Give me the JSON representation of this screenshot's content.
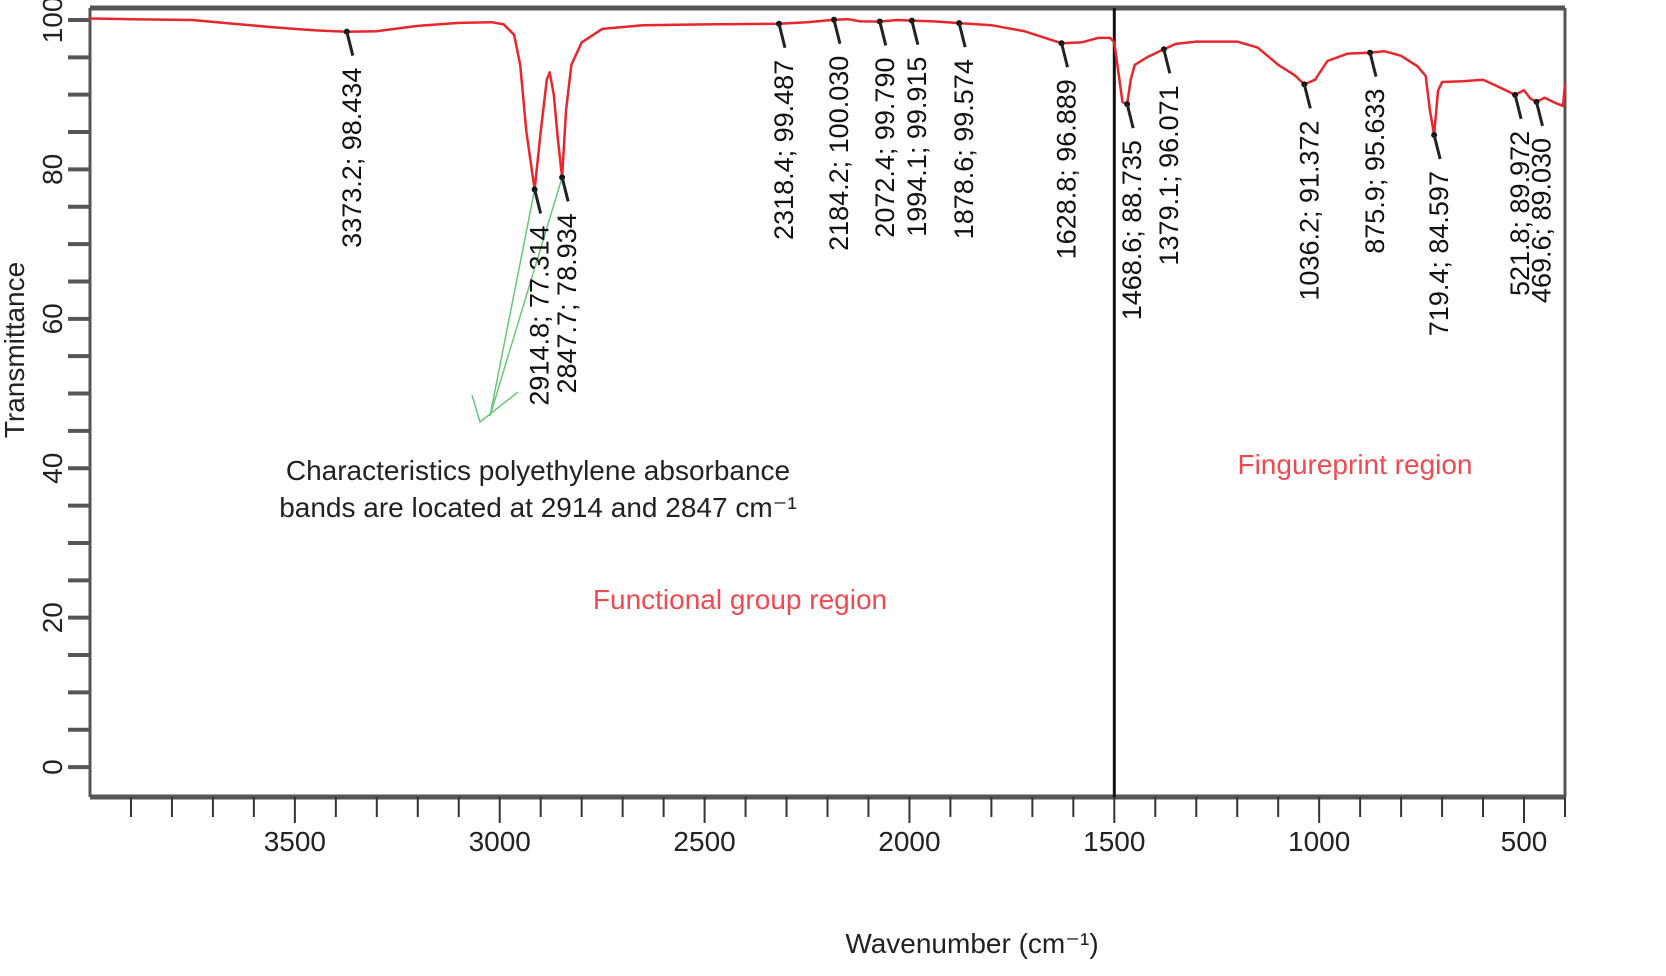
{
  "chart_data": {
    "type": "line",
    "title": "",
    "xlabel": "Wavenumber (cm⁻¹)",
    "ylabel": "Transmittance",
    "xlim": [
      4000,
      400
    ],
    "ylim": [
      -4,
      101.6
    ],
    "x_ticks": [
      3500,
      3000,
      2500,
      2000,
      1500,
      1000,
      500
    ],
    "x_tick_labels": [
      "3500",
      "3000",
      "2500",
      "2000",
      "1500",
      "1000",
      "500"
    ],
    "y_ticks": [
      0,
      20,
      40,
      60,
      80,
      100
    ],
    "y_tick_labels": [
      "0",
      "20",
      "40",
      "60",
      "80",
      "100"
    ],
    "grid": false,
    "series": [
      {
        "name": "spectrum",
        "color": "#e8262b",
        "points": [
          [
            4000,
            100.2
          ],
          [
            3900,
            100.1
          ],
          [
            3750,
            100
          ],
          [
            3650,
            99.5
          ],
          [
            3550,
            99
          ],
          [
            3450,
            98.6
          ],
          [
            3373.2,
            98.434
          ],
          [
            3300,
            98.5
          ],
          [
            3200,
            99.2
          ],
          [
            3100,
            99.6
          ],
          [
            3020,
            99.7
          ],
          [
            2990,
            99.4
          ],
          [
            2965,
            98
          ],
          [
            2950,
            94
          ],
          [
            2935,
            85
          ],
          [
            2914.8,
            77.314
          ],
          [
            2900,
            85
          ],
          [
            2885,
            92
          ],
          [
            2878,
            93
          ],
          [
            2868,
            90
          ],
          [
            2858,
            84
          ],
          [
            2847.7,
            78.934
          ],
          [
            2838,
            88
          ],
          [
            2825,
            94
          ],
          [
            2800,
            97
          ],
          [
            2750,
            98.8
          ],
          [
            2650,
            99.3
          ],
          [
            2500,
            99.4
          ],
          [
            2318.4,
            99.487
          ],
          [
            2250,
            99.7
          ],
          [
            2184.2,
            100.03
          ],
          [
            2150,
            100.1
          ],
          [
            2120,
            99.8
          ],
          [
            2072.4,
            99.79
          ],
          [
            2030,
            100
          ],
          [
            1994.1,
            99.915
          ],
          [
            1940,
            99.8
          ],
          [
            1878.6,
            99.574
          ],
          [
            1800,
            99.3
          ],
          [
            1720,
            98.5
          ],
          [
            1628.8,
            96.889
          ],
          [
            1580,
            97
          ],
          [
            1540,
            97.6
          ],
          [
            1510,
            97.6
          ],
          [
            1500,
            97
          ],
          [
            1490,
            93
          ],
          [
            1480,
            89
          ],
          [
            1468.6,
            88.735
          ],
          [
            1460,
            92
          ],
          [
            1450,
            94
          ],
          [
            1420,
            95
          ],
          [
            1379.1,
            96.071
          ],
          [
            1350,
            96.8
          ],
          [
            1300,
            97.1
          ],
          [
            1200,
            97.1
          ],
          [
            1150,
            96.3
          ],
          [
            1100,
            94
          ],
          [
            1060,
            92.6
          ],
          [
            1036.2,
            91.372
          ],
          [
            1010,
            92
          ],
          [
            980,
            94.5
          ],
          [
            930,
            95.5
          ],
          [
            875.9,
            95.633
          ],
          [
            840,
            95.8
          ],
          [
            800,
            95.2
          ],
          [
            760,
            93.8
          ],
          [
            740,
            92.5
          ],
          [
            730,
            88
          ],
          [
            719.4,
            84.597
          ],
          [
            710,
            90.5
          ],
          [
            700,
            91.7
          ],
          [
            650,
            91.8
          ],
          [
            600,
            92
          ],
          [
            560,
            91
          ],
          [
            521.8,
            89.972
          ],
          [
            500,
            90.6
          ],
          [
            485,
            89.5
          ],
          [
            469.6,
            89.03
          ],
          [
            450,
            89.6
          ],
          [
            420,
            88.8
          ],
          [
            405,
            88.5
          ],
          [
            400,
            91.5
          ]
        ]
      }
    ],
    "peak_labels": [
      {
        "x": 3373.2,
        "y": 98.434,
        "text": "3373.2; 98.434"
      },
      {
        "x": 2914.8,
        "y": 77.314,
        "text": "2914.8; 77.314"
      },
      {
        "x": 2847.7,
        "y": 78.934,
        "text": "2847.7; 78.934"
      },
      {
        "x": 2318.4,
        "y": 99.487,
        "text": "2318.4; 99.487"
      },
      {
        "x": 2184.2,
        "y": 100.03,
        "text": "2184.2; 100.030"
      },
      {
        "x": 2072.4,
        "y": 99.79,
        "text": "2072.4; 99.790"
      },
      {
        "x": 1994.1,
        "y": 99.915,
        "text": "1994.1; 99.915"
      },
      {
        "x": 1878.6,
        "y": 99.574,
        "text": "1878.6; 99.574"
      },
      {
        "x": 1628.8,
        "y": 96.889,
        "text": "1628.8; 96.889"
      },
      {
        "x": 1468.6,
        "y": 88.735,
        "text": "1468.6; 88.735"
      },
      {
        "x": 1379.1,
        "y": 96.071,
        "text": "1379.1; 96.071"
      },
      {
        "x": 1036.2,
        "y": 91.372,
        "text": "1036.2; 91.372"
      },
      {
        "x": 875.9,
        "y": 95.633,
        "text": "875.9; 95.633"
      },
      {
        "x": 719.4,
        "y": 84.597,
        "text": "719.4; 84.597"
      },
      {
        "x": 521.8,
        "y": 89.972,
        "text": "521.8; 89.972"
      },
      {
        "x": 469.6,
        "y": 89.03,
        "text": "469.6; 89.030"
      }
    ],
    "annotations": {
      "note_line1": "Characteristics polyethylene absorbance",
      "note_line2": "bands are located at 2914 and 2847 cm⁻¹",
      "functional_region": "Functional group region",
      "fingerprint_region": "Fingureprint region"
    },
    "divider_x": 1500,
    "colors": {
      "line": "#e8262b",
      "region_text": "#ef4a51",
      "arrow": "#6cc57c",
      "axis": "#555555"
    }
  }
}
